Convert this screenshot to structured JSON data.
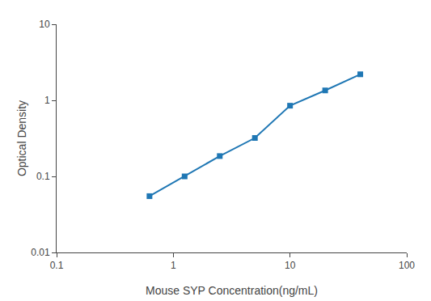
{
  "chart_data": {
    "type": "line",
    "x": [
      0.625,
      1.25,
      2.5,
      5,
      10,
      20,
      40
    ],
    "values": [
      0.055,
      0.1,
      0.185,
      0.32,
      0.85,
      1.35,
      2.2
    ],
    "xlabel": "Mouse SYP Concentration(ng/mL)",
    "ylabel": "Optical Density",
    "xlim": [
      0.1,
      100
    ],
    "ylim": [
      0.01,
      10
    ],
    "xticks": [
      0.1,
      1,
      10,
      100
    ],
    "yticks": [
      0.01,
      0.1,
      1,
      10
    ],
    "log": true,
    "grid": false,
    "marker": "square",
    "line_style": "solid"
  }
}
